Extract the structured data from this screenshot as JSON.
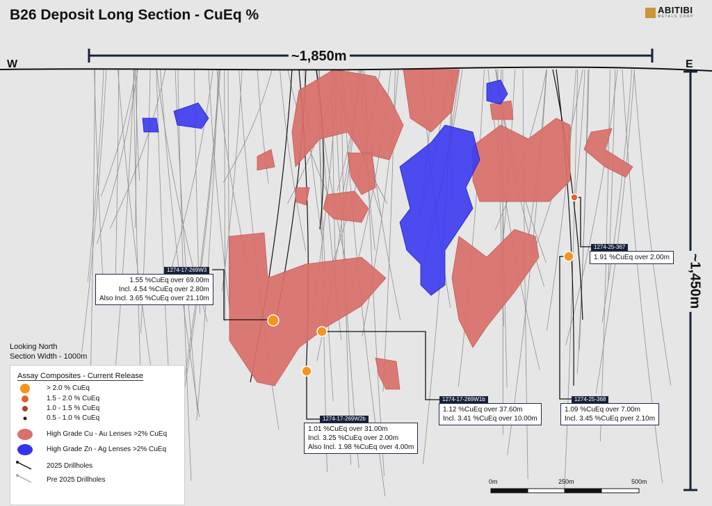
{
  "title": "B26 Deposit Long Section - CuEq %",
  "logo": {
    "name": "ABITIBI",
    "subtitle": "METALS CORP"
  },
  "directions": {
    "west": "W",
    "east": "E"
  },
  "dimensions": {
    "span": "~1,850m",
    "depth": "~1,450m"
  },
  "view": {
    "line1": "Looking North",
    "line2": "Section Width - 1000m"
  },
  "callouts": [
    {
      "hole": "1274-17-269W3",
      "lines": [
        "1.55 %CuEq over 69.00m",
        "Incl. 4.54 %CuEq over 2.80m",
        "Also Incl. 3.65 %CuEq over 21.10m"
      ]
    },
    {
      "hole": "1274-17-269W2b",
      "lines": [
        "1.01 %CuEq over 31.00m",
        "Incl. 3.25 %CuEq over 2.00m",
        "Also Incl. 1.98 %CuEq over 4.00m"
      ]
    },
    {
      "hole": "1274-17-269W1b",
      "lines": [
        "1.12 %CuEq over 37.60m",
        "Incl. 3.41 %CuEq over 10.00m"
      ]
    },
    {
      "hole": "1274-25-368",
      "lines": [
        "1.09 %CuEq over 7.00m",
        "Incl. 3.45 %CuEq pver 2.10m"
      ]
    },
    {
      "hole": "1274-25-367",
      "lines": [
        "1.91 %CuEq over 2.00m"
      ]
    }
  ],
  "legend": {
    "heading": "Assay Composites - Current Release",
    "items": [
      {
        "label": "> 2.0 % CuEq",
        "color": "#f7941d"
      },
      {
        "label": "1.5 - 2.0 % CuEq",
        "color": "#e2622a"
      },
      {
        "label": "1.0 - 1.5 % CuEq",
        "color": "#a0482a"
      },
      {
        "label": "0.5 - 1.0 % CuEq",
        "color": "#222222"
      },
      {
        "label": "High Grade Cu - Au Lenses >2% CuEq",
        "color": "#d9706a"
      },
      {
        "label": "High Grade Zn - Ag Lenses >2% CuEq",
        "color": "#3333ee"
      },
      {
        "label": "2025 Drillholes",
        "color": "#111111"
      },
      {
        "label": "Pre 2025 Drillholes",
        "color": "#9a9a9a"
      }
    ]
  },
  "scale_bar": {
    "labels": [
      "0m",
      "250m",
      "500m"
    ]
  }
}
